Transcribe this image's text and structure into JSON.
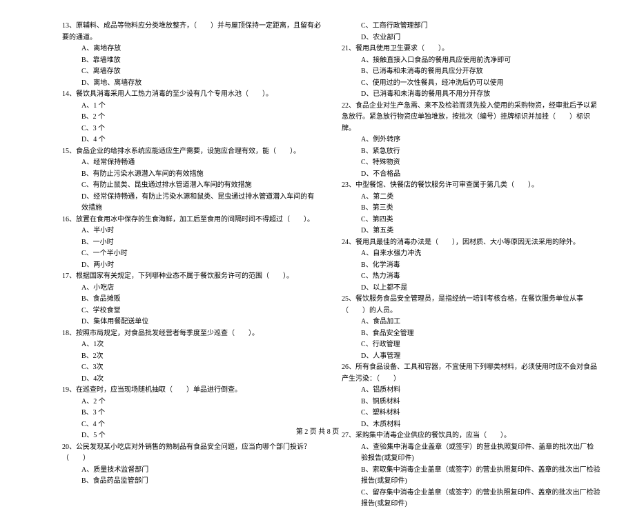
{
  "columns": {
    "left": [
      {
        "type": "q",
        "text": "13、原辅料、成品等物料应分类堆放整齐，（　　）并与屋顶保持一定距离，且留有必要的通道。"
      },
      {
        "type": "o",
        "text": "A、离地存放"
      },
      {
        "type": "o",
        "text": "B、靠墙堆放"
      },
      {
        "type": "o",
        "text": "C、离墙存放"
      },
      {
        "type": "o",
        "text": "D、离地、离墙存放"
      },
      {
        "type": "q",
        "text": "14、餐饮具消毒采用人工热力消毒的至少设有几个专用水池（　　）。"
      },
      {
        "type": "o",
        "text": "A、1 个"
      },
      {
        "type": "o",
        "text": "B、2 个"
      },
      {
        "type": "o",
        "text": "C、3 个"
      },
      {
        "type": "o",
        "text": "D、4 个"
      },
      {
        "type": "q",
        "text": "15、食品企业的给排水系统应能适应生产需要，设施应合理有效，能（　　）。"
      },
      {
        "type": "o",
        "text": "A、经常保持畅通"
      },
      {
        "type": "o",
        "text": "B、有防止污染水源潜入车间的有效措施"
      },
      {
        "type": "o",
        "text": "C、有防止鼠类、昆虫通过排水管道潜入车间的有效措施"
      },
      {
        "type": "o",
        "text": "D、经常保持畅通，有防止污染水源和鼠类、昆虫通过排水管道潜入车间的有效措施"
      },
      {
        "type": "q",
        "text": "16、放置在食用冰中保存的生食海鲜，加工后至食用的间隔时间不得超过（　　）。"
      },
      {
        "type": "o",
        "text": "A、半小时"
      },
      {
        "type": "o",
        "text": "B、一小时"
      },
      {
        "type": "o",
        "text": "C、一个半小时"
      },
      {
        "type": "o",
        "text": "D、两小时"
      },
      {
        "type": "q",
        "text": "17、根据国家有关规定，下列哪种业态不属于餐饮服务许可的范围（　　）。"
      },
      {
        "type": "o",
        "text": "A、小吃店"
      },
      {
        "type": "o",
        "text": "B、食品摊贩"
      },
      {
        "type": "o",
        "text": "C、学校食堂"
      },
      {
        "type": "o",
        "text": "D、集体用餐配送单位"
      },
      {
        "type": "q",
        "text": "18、按照市局规定，对食品批发经营者每季度至少巡查（　　）。"
      },
      {
        "type": "o",
        "text": "A、1次"
      },
      {
        "type": "o",
        "text": "B、2次"
      },
      {
        "type": "o",
        "text": "C、3次"
      },
      {
        "type": "o",
        "text": "D、4次"
      },
      {
        "type": "q",
        "text": "19、在巡查时，应当现场随机抽取（　　）单品进行倒查。"
      },
      {
        "type": "o",
        "text": "A、2 个"
      },
      {
        "type": "o",
        "text": "B、3 个"
      },
      {
        "type": "o",
        "text": "C、4 个"
      },
      {
        "type": "o",
        "text": "D、5 个"
      },
      {
        "type": "q",
        "text": "20、公民发现某小吃店对外销售的熟制品有食品安全问题，应当向哪个部门投诉？（　　）"
      },
      {
        "type": "o",
        "text": "A、质量技术监督部门"
      },
      {
        "type": "o",
        "text": "B、食品药品监管部门"
      }
    ],
    "right": [
      {
        "type": "o",
        "text": "C、工商行政管理部门"
      },
      {
        "type": "o",
        "text": "D、农业部门"
      },
      {
        "type": "q",
        "text": "21、餐用具使用卫生要求（　　）。"
      },
      {
        "type": "o",
        "text": "A、接触直接入口食品的餐用具应使用前洗净即可"
      },
      {
        "type": "o",
        "text": "B、已消毒和未消毒的餐用具应分开存放"
      },
      {
        "type": "o",
        "text": "C、使用过的一次性餐具，经冲洗后仍可以使用"
      },
      {
        "type": "o",
        "text": "D、已消毒和未消毒的餐用具不用分开存放"
      },
      {
        "type": "q",
        "text": "22、食品企业对生产急需、来不及检验而须先投入使用的采购物资，经审批后予以紧急放行。紧急放行物资应单独堆放，按批次（编号）挂牌标识并加挂（　　）标识牌。"
      },
      {
        "type": "o",
        "text": "A、例外转序"
      },
      {
        "type": "o",
        "text": "B、紧急放行"
      },
      {
        "type": "o",
        "text": "C、特殊物资"
      },
      {
        "type": "o",
        "text": "D、不合格品"
      },
      {
        "type": "q",
        "text": "23、中型餐馆、快餐店的餐饮服务许可审查属于第几类（　　）。"
      },
      {
        "type": "o",
        "text": "A、第二类"
      },
      {
        "type": "o",
        "text": "B、第三类"
      },
      {
        "type": "o",
        "text": "C、第四类"
      },
      {
        "type": "o",
        "text": "D、第五类"
      },
      {
        "type": "q",
        "text": "24、餐用具最佳的消毒办法是（　　），因材质、大小等原因无法采用的除外。"
      },
      {
        "type": "o",
        "text": "A、自来水强力冲洗"
      },
      {
        "type": "o",
        "text": "B、化学消毒"
      },
      {
        "type": "o",
        "text": "C、热力消毒"
      },
      {
        "type": "o",
        "text": "D、以上都不是"
      },
      {
        "type": "q",
        "text": "25、餐饮服务食品安全管理员，是指经统一培训考核合格，在餐饮服务单位从事（　　）的人员。"
      },
      {
        "type": "o",
        "text": "A、食品加工"
      },
      {
        "type": "o",
        "text": "B、食品安全管理"
      },
      {
        "type": "o",
        "text": "C、行政管理"
      },
      {
        "type": "o",
        "text": "D、人事管理"
      },
      {
        "type": "q",
        "text": "26、所有食品设备、工具和容器，不宜使用下列哪类材料，必须使用时应不会对食品产生污染：（　　）"
      },
      {
        "type": "o",
        "text": "A、铝质材料"
      },
      {
        "type": "o",
        "text": "B、铜质材料"
      },
      {
        "type": "o",
        "text": "C、塑料材料"
      },
      {
        "type": "o",
        "text": "D、木质材料"
      },
      {
        "type": "q",
        "text": "27、采购集中消毒企业供应的餐饮具的，应当（　　）。"
      },
      {
        "type": "o",
        "text": "A、查验集中消毒企业盖章（或签字）的营业执照复印件、盖章的批次出厂检验报告(或复印件)"
      },
      {
        "type": "o",
        "text": "B、索取集中消毒企业盖章（或签字）的营业执照复印件、盖章的批次出厂检验报告(或复印件)"
      },
      {
        "type": "o",
        "text": "C、留存集中消毒企业盖章（或签字）的营业执照复印件、盖章的批次出厂检验报告(或复印件)"
      }
    ]
  },
  "footer": "第 2 页 共 8 页"
}
